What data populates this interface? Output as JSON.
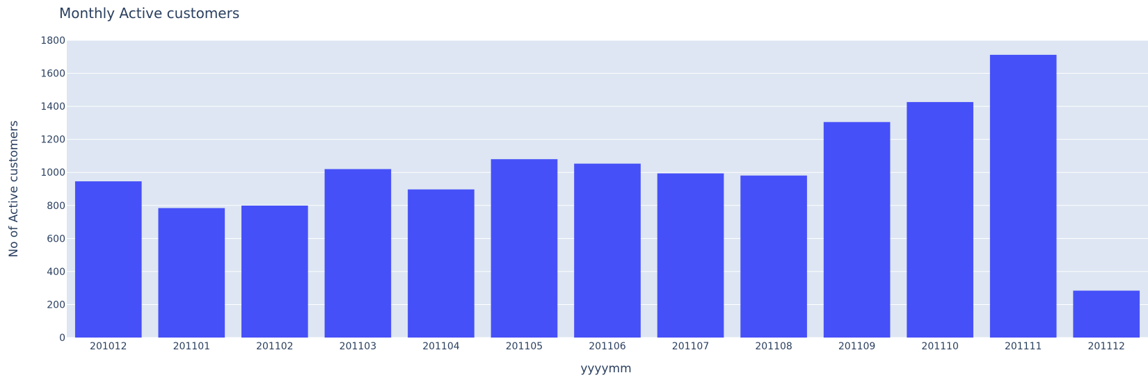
{
  "chart_data": {
    "type": "bar",
    "title": "Monthly Active customers",
    "xlabel": "yyyymm",
    "ylabel": "No of Active customers",
    "categories": [
      "201012",
      "201101",
      "201102",
      "201103",
      "201104",
      "201105",
      "201106",
      "201107",
      "201108",
      "201109",
      "201110",
      "201111",
      "201112"
    ],
    "values": [
      946,
      784,
      799,
      1020,
      897,
      1080,
      1053,
      994,
      981,
      1305,
      1426,
      1712,
      284
    ],
    "ylim": [
      0,
      1800
    ],
    "yticks": [
      "0",
      "200",
      "400",
      "600",
      "800",
      "1000",
      "1200",
      "1400",
      "1600",
      "1800"
    ],
    "grid": true,
    "colors": {
      "bar": "#4650f8",
      "plot_background": "#dde6f2",
      "grid": "#ffffff",
      "text": "#2a3f5f"
    }
  }
}
